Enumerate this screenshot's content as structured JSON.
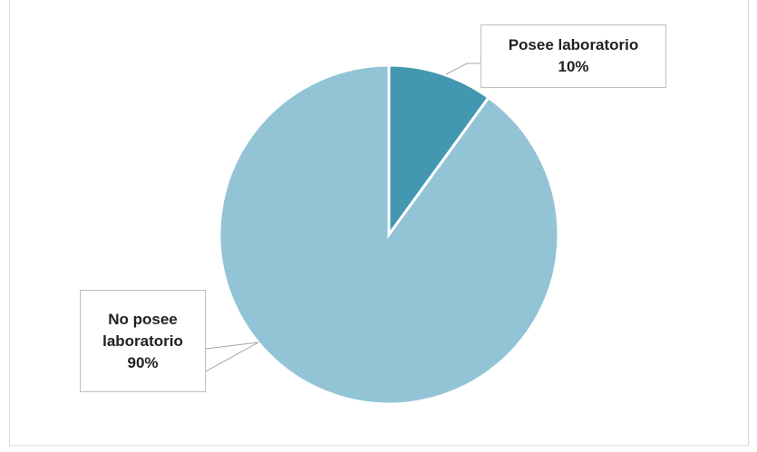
{
  "chart_data": {
    "type": "pie",
    "categories": [
      "Posee laboratorio",
      "No posee laboratorio"
    ],
    "values": [
      10,
      90
    ],
    "value_labels": [
      "10%",
      "90%"
    ],
    "colors": [
      "#4397b0",
      "#93c4d6"
    ]
  }
}
